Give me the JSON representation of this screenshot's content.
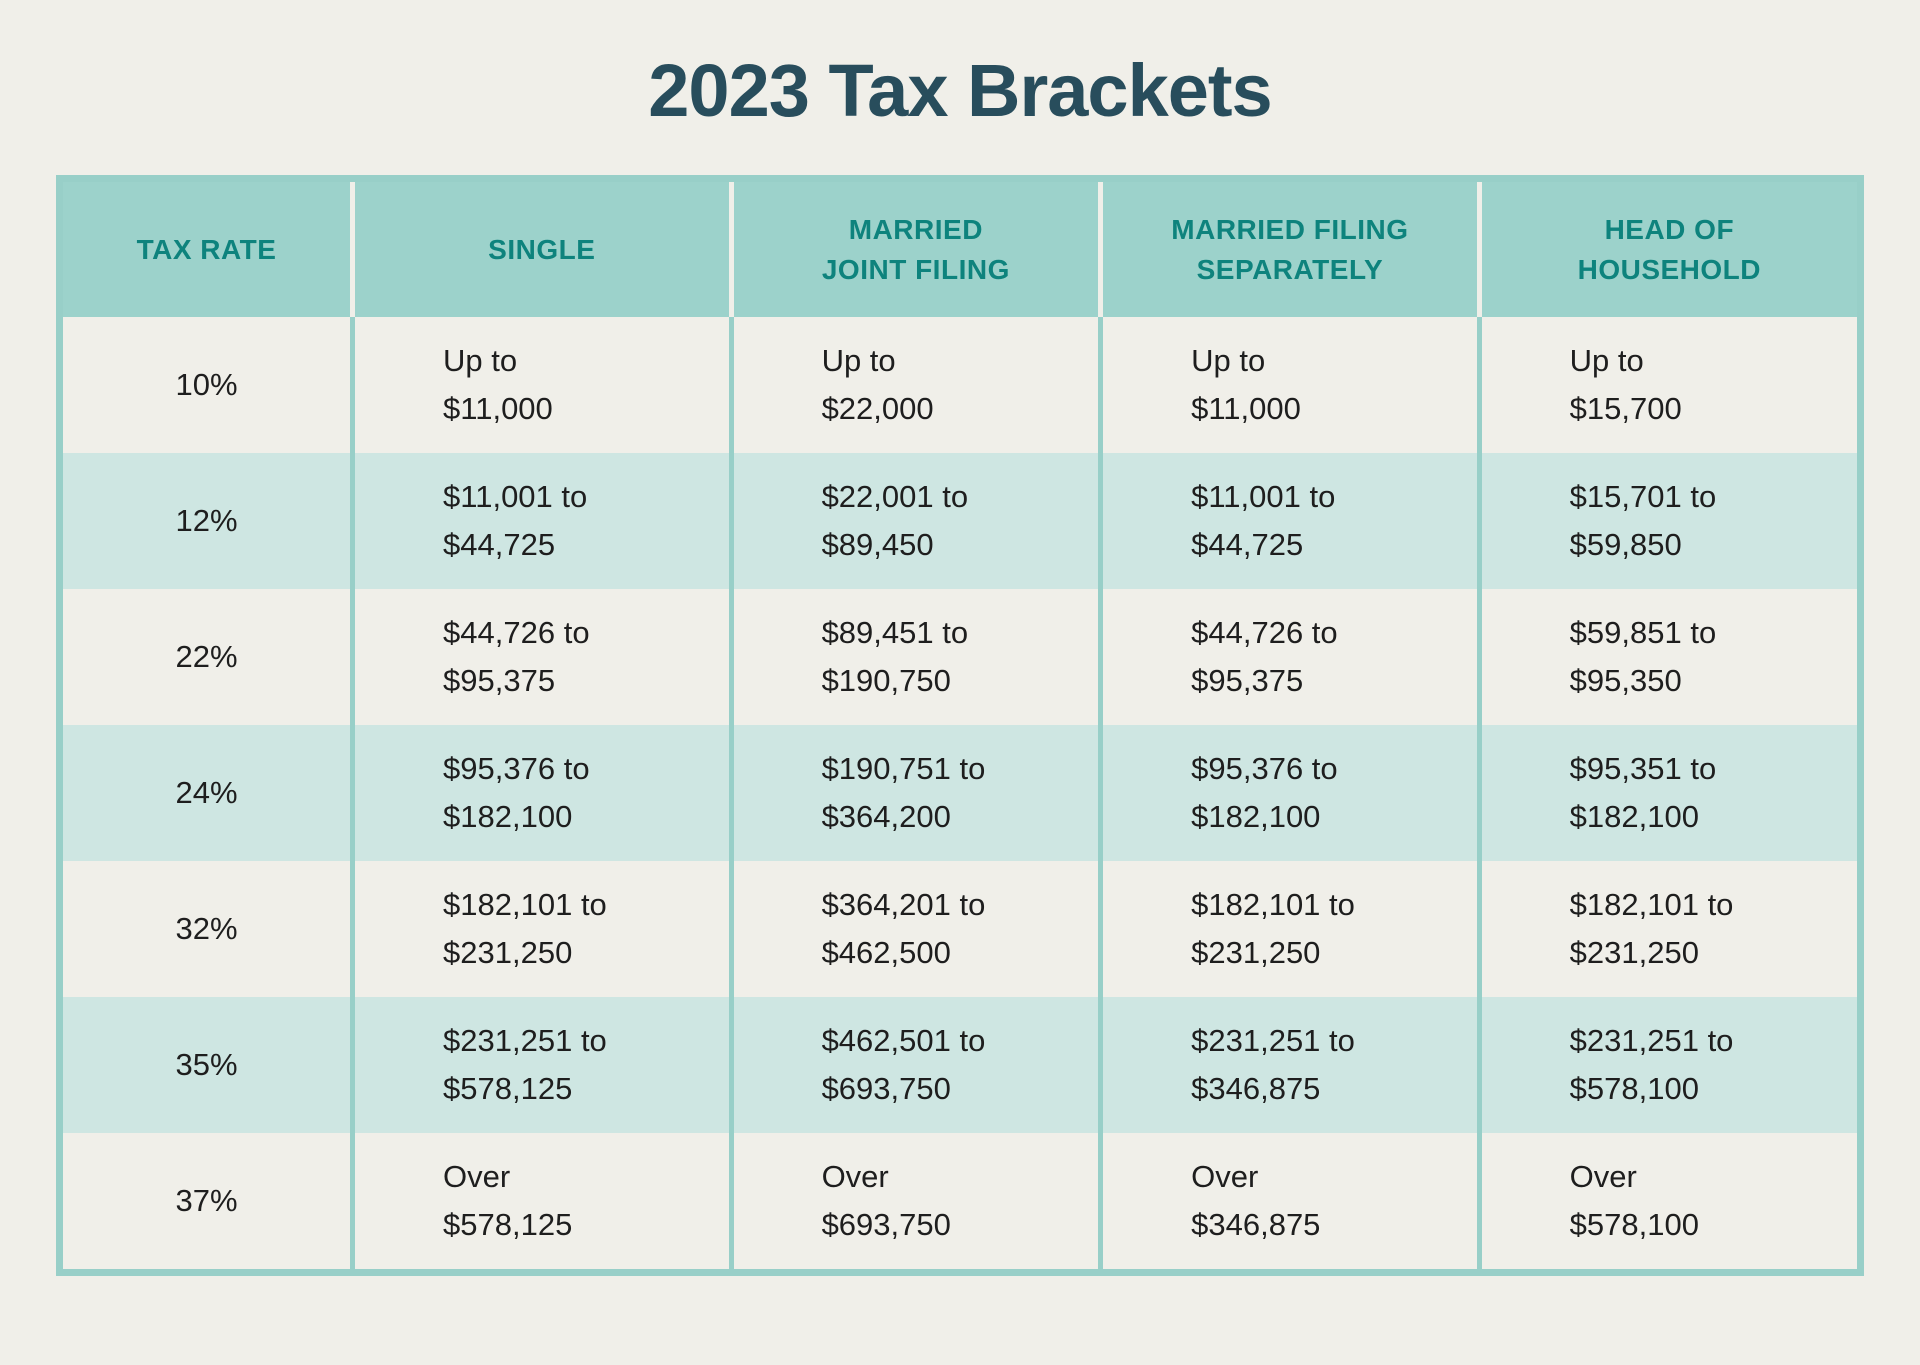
{
  "page": {
    "title": "2023 Tax Brackets",
    "background": "#f0efe9"
  },
  "colors": {
    "title_text": "#284d5c",
    "header_bg": "#9cd2cb",
    "header_text": "#0e837d",
    "row_bg": "#f0efe9",
    "row_alt_bg": "#cee6e2",
    "border": "#98cfc8",
    "cell_text": "#1e1e1e"
  },
  "table": {
    "columns": [
      {
        "label": "TAX RATE",
        "lines": [
          "TAX RATE"
        ]
      },
      {
        "label": "SINGLE",
        "lines": [
          "SINGLE"
        ]
      },
      {
        "label": "MARRIED JOINT FILING",
        "lines": [
          "MARRIED",
          "JOINT FILING"
        ]
      },
      {
        "label": "MARRIED FILING SEPARATELY",
        "lines": [
          "MARRIED FILING",
          "SEPARATELY"
        ]
      },
      {
        "label": "HEAD OF HOUSEHOLD",
        "lines": [
          "HEAD OF",
          "HOUSEHOLD"
        ]
      }
    ],
    "rows": [
      {
        "rate": "10%",
        "cells": [
          {
            "l1": "Up to",
            "l2": "$11,000"
          },
          {
            "l1": "Up to",
            "l2": "$22,000"
          },
          {
            "l1": "Up to",
            "l2": "$11,000"
          },
          {
            "l1": "Up to",
            "l2": "$15,700"
          }
        ]
      },
      {
        "rate": "12%",
        "cells": [
          {
            "l1": "$11,001 to",
            "l2": "$44,725"
          },
          {
            "l1": "$22,001 to",
            "l2": "$89,450"
          },
          {
            "l1": "$11,001 to",
            "l2": "$44,725"
          },
          {
            "l1": "$15,701 to",
            "l2": "$59,850"
          }
        ]
      },
      {
        "rate": "22%",
        "cells": [
          {
            "l1": "$44,726 to",
            "l2": "$95,375"
          },
          {
            "l1": "$89,451 to",
            "l2": "$190,750"
          },
          {
            "l1": "$44,726 to",
            "l2": "$95,375"
          },
          {
            "l1": "$59,851 to",
            "l2": "$95,350"
          }
        ]
      },
      {
        "rate": "24%",
        "cells": [
          {
            "l1": "$95,376 to",
            "l2": "$182,100"
          },
          {
            "l1": "$190,751 to",
            "l2": "$364,200"
          },
          {
            "l1": "$95,376 to",
            "l2": "$182,100"
          },
          {
            "l1": "$95,351 to",
            "l2": "$182,100"
          }
        ]
      },
      {
        "rate": "32%",
        "cells": [
          {
            "l1": "$182,101 to",
            "l2": "$231,250"
          },
          {
            "l1": "$364,201 to",
            "l2": "$462,500"
          },
          {
            "l1": "$182,101 to",
            "l2": "$231,250"
          },
          {
            "l1": "$182,101 to",
            "l2": "$231,250"
          }
        ]
      },
      {
        "rate": "35%",
        "cells": [
          {
            "l1": "$231,251 to",
            "l2": "$578,125"
          },
          {
            "l1": "$462,501 to",
            "l2": "$693,750"
          },
          {
            "l1": "$231,251 to",
            "l2": "$346,875"
          },
          {
            "l1": "$231,251 to",
            "l2": "$578,100"
          }
        ]
      },
      {
        "rate": "37%",
        "cells": [
          {
            "l1": "Over",
            "l2": "$578,125"
          },
          {
            "l1": "Over",
            "l2": "$693,750"
          },
          {
            "l1": "Over",
            "l2": "$346,875"
          },
          {
            "l1": "Over",
            "l2": "$578,100"
          }
        ]
      }
    ]
  },
  "chart_data": {
    "type": "table",
    "title": "2023 Tax Brackets",
    "columns": [
      "TAX RATE",
      "SINGLE",
      "MARRIED JOINT FILING",
      "MARRIED FILING SEPARATELY",
      "HEAD OF HOUSEHOLD"
    ],
    "rows": [
      [
        "10%",
        "Up to $11,000",
        "Up to $22,000",
        "Up to $11,000",
        "Up to $15,700"
      ],
      [
        "12%",
        "$11,001 to $44,725",
        "$22,001 to $89,450",
        "$11,001 to $44,725",
        "$15,701 to $59,850"
      ],
      [
        "22%",
        "$44,726 to $95,375",
        "$89,451 to $190,750",
        "$44,726 to $95,375",
        "$59,851 to $95,350"
      ],
      [
        "24%",
        "$95,376 to $182,100",
        "$190,751 to $364,200",
        "$95,376 to $182,100",
        "$95,351 to $182,100"
      ],
      [
        "32%",
        "$182,101 to $231,250",
        "$364,201 to $462,500",
        "$182,101 to $231,250",
        "$182,101 to $231,250"
      ],
      [
        "35%",
        "$231,251 to $578,125",
        "$462,501 to $693,750",
        "$231,251 to $346,875",
        "$231,251 to $578,100"
      ],
      [
        "37%",
        "Over $578,125",
        "Over $693,750",
        "Over $346,875",
        "Over $578,100"
      ]
    ]
  }
}
